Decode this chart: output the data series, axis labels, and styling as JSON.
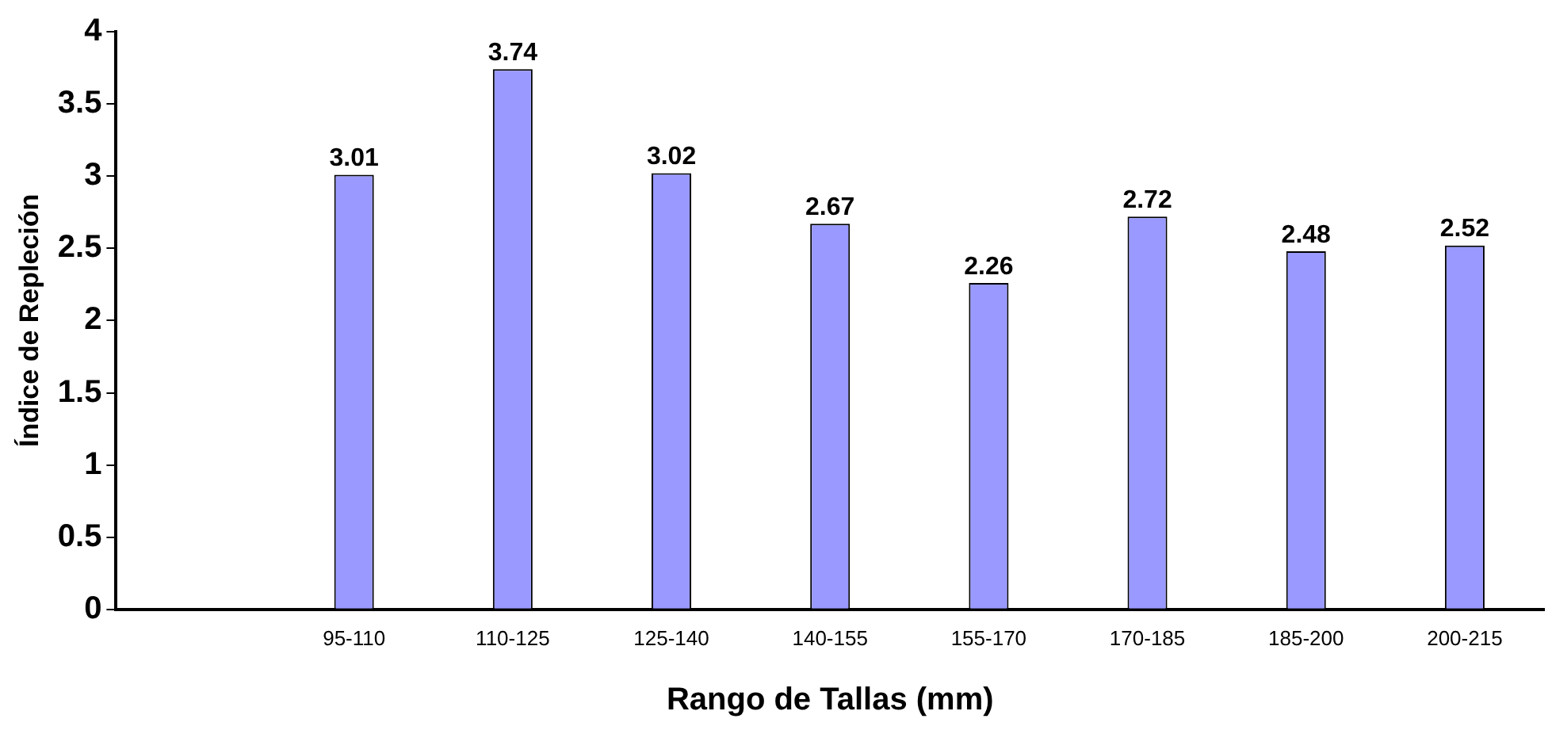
{
  "chart_data": {
    "type": "bar",
    "xlabel": "Rango de Tallas (mm)",
    "ylabel": "Índice de Repleción",
    "categories": [
      null,
      "95-110",
      "110-125",
      "125-140",
      "140-155",
      "155-170",
      "170-185",
      "185-200",
      "200-215"
    ],
    "values": [
      null,
      3.01,
      3.74,
      3.02,
      2.67,
      2.26,
      2.72,
      2.48,
      2.52
    ],
    "color": "#9999ff",
    "ylim": [
      0,
      4
    ],
    "yticks": [
      0,
      0.5,
      1,
      1.5,
      2,
      2.5,
      3,
      3.5,
      4
    ],
    "grid": false,
    "legend": false,
    "data_labels": true
  }
}
